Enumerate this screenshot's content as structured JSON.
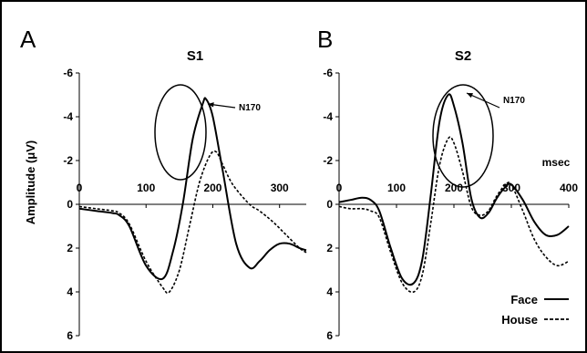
{
  "figure": {
    "ylabel": "Amplitude (μV)",
    "legend": {
      "placement": "bottom-right",
      "entries": [
        {
          "label": "Face",
          "line_style": "solid"
        },
        {
          "label": "House",
          "line_style": "dashed"
        }
      ]
    }
  },
  "chart_data": [
    {
      "type": "line",
      "panel": "A",
      "title": "S1",
      "xlabel": "",
      "ylabel": "Amplitude (μV)",
      "xlim": [
        0,
        340
      ],
      "ylim": [
        6,
        -6
      ],
      "y_inverted": true,
      "x_ticks": [
        0,
        100,
        200,
        300
      ],
      "y_ticks": [
        -6,
        -4,
        -2,
        0,
        2,
        4,
        6
      ],
      "x_tick_labels": [
        "0",
        "100",
        "200",
        "300"
      ],
      "y_tick_labels": [
        "-6",
        "-4",
        "-2",
        "0",
        "2",
        "4",
        "6"
      ],
      "grid": false,
      "annotation": {
        "text": "N170",
        "shape": "ellipse"
      },
      "series": [
        {
          "name": "Face",
          "style": "solid",
          "x": [
            0,
            25,
            50,
            60,
            75,
            100,
            125,
            140,
            155,
            170,
            185,
            190,
            200,
            215,
            235,
            255,
            270,
            285,
            300,
            315,
            330,
            340
          ],
          "y": [
            0.2,
            0.3,
            0.4,
            0.5,
            1.0,
            2.8,
            3.4,
            2.2,
            0.0,
            -3.0,
            -4.6,
            -4.8,
            -4.0,
            -1.5,
            1.8,
            2.9,
            2.6,
            2.1,
            1.8,
            1.8,
            2.0,
            2.1
          ]
        },
        {
          "name": "House",
          "style": "dashed",
          "x": [
            0,
            25,
            50,
            60,
            75,
            100,
            125,
            135,
            150,
            165,
            180,
            195,
            205,
            215,
            230,
            255,
            270,
            290,
            310,
            330,
            340
          ],
          "y": [
            0.1,
            0.2,
            0.3,
            0.4,
            0.9,
            2.6,
            3.8,
            4.0,
            3.0,
            1.0,
            -1.0,
            -2.2,
            -2.4,
            -1.8,
            -0.9,
            0.0,
            0.3,
            0.8,
            1.4,
            2.0,
            2.2
          ]
        }
      ]
    },
    {
      "type": "line",
      "panel": "B",
      "title": "S2",
      "xlabel": "msec",
      "ylabel": "",
      "xlim": [
        0,
        400
      ],
      "ylim": [
        6,
        -6
      ],
      "y_inverted": true,
      "x_ticks": [
        0,
        100,
        200,
        300,
        400
      ],
      "y_ticks": [
        -6,
        -4,
        -2,
        0,
        2,
        4,
        6
      ],
      "x_tick_labels": [
        "0",
        "100",
        "200",
        "300",
        "400"
      ],
      "y_tick_labels": [
        "-6",
        "-4",
        "-2",
        "0",
        "2",
        "4",
        "6"
      ],
      "grid": false,
      "annotation": {
        "text": "N170",
        "shape": "ellipse"
      },
      "series": [
        {
          "name": "Face",
          "style": "solid",
          "x": [
            0,
            20,
            40,
            55,
            70,
            90,
            110,
            130,
            145,
            160,
            175,
            190,
            200,
            215,
            230,
            245,
            260,
            275,
            290,
            300,
            320,
            340,
            360,
            380,
            400
          ],
          "y": [
            -0.1,
            -0.2,
            -0.3,
            -0.2,
            0.3,
            2.0,
            3.4,
            3.6,
            2.5,
            -0.5,
            -3.8,
            -5.0,
            -4.5,
            -2.8,
            -0.3,
            0.6,
            0.4,
            -0.3,
            -0.8,
            -0.9,
            -0.2,
            0.8,
            1.4,
            1.4,
            1.0
          ]
        },
        {
          "name": "House",
          "style": "dashed",
          "x": [
            0,
            20,
            40,
            55,
            70,
            90,
            110,
            130,
            145,
            160,
            175,
            190,
            200,
            215,
            230,
            245,
            260,
            275,
            290,
            300,
            320,
            340,
            360,
            380,
            400
          ],
          "y": [
            0.1,
            0.2,
            0.2,
            0.3,
            0.6,
            2.2,
            3.6,
            4.0,
            3.2,
            0.8,
            -1.8,
            -3.0,
            -2.8,
            -1.5,
            0.1,
            0.5,
            0.3,
            -0.4,
            -0.9,
            -0.9,
            0.3,
            1.6,
            2.4,
            2.8,
            2.6
          ]
        }
      ]
    }
  ]
}
